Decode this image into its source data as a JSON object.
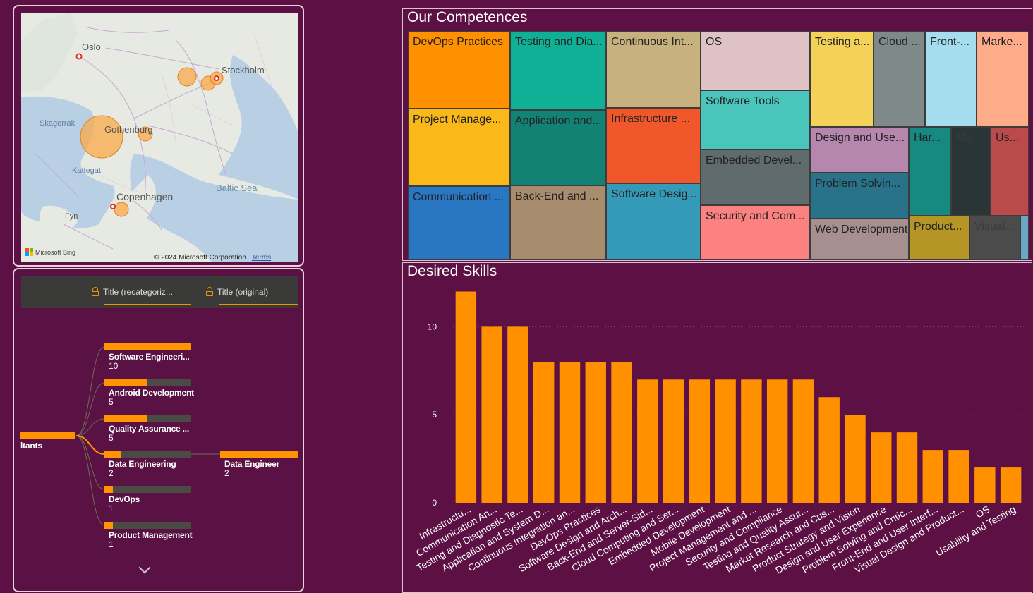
{
  "map": {
    "labels": {
      "oslo": "Oslo",
      "stockholm": "Stockholm",
      "skagerrak": "Skagerrak",
      "gothenburg": "Gothenburg",
      "kattegat": "Kattegat",
      "baltic": "Baltic Sea",
      "copenhagen": "Copenhagen",
      "fyn": "Fyn"
    },
    "bing": "Microsoft Bing",
    "copyright": "© 2024 Microsoft Corporation",
    "terms": "Terms"
  },
  "tree": {
    "field1": "Title (recategoriz...",
    "field2": "Title (original)",
    "root_label": "ltants",
    "nodes": [
      {
        "label": "Software Engineeri...",
        "value": "10",
        "fraction": 1.0
      },
      {
        "label": "Android Development",
        "value": "5",
        "fraction": 0.5
      },
      {
        "label": "Quality Assurance ...",
        "value": "5",
        "fraction": 0.5
      },
      {
        "label": "Data Engineering",
        "value": "2",
        "fraction": 0.2
      },
      {
        "label": "DevOps",
        "value": "1",
        "fraction": 0.1
      },
      {
        "label": "Product Management",
        "value": "1",
        "fraction": 0.1
      }
    ],
    "child": {
      "label": "Data Engineer",
      "value": "2",
      "fraction": 1.0
    }
  },
  "competences": {
    "title": "Our Competences",
    "tiles": [
      {
        "label": "DevOps Practices",
        "color": "#ff9000"
      },
      {
        "label": "Project Manage...",
        "color": "#fbb819"
      },
      {
        "label": "Communication ...",
        "color": "#2977c2"
      },
      {
        "label": "Testing and Dia...",
        "color": "#10b096"
      },
      {
        "label": "Application and...",
        "color": "#128274"
      },
      {
        "label": "Back-End and ...",
        "color": "#a98c6e"
      },
      {
        "label": "Continuous Int...",
        "color": "#c6b17f"
      },
      {
        "label": "Infrastructure ...",
        "color": "#f0582b"
      },
      {
        "label": "Software Desig...",
        "color": "#3599b8"
      },
      {
        "label": "OS",
        "color": "#dfc2c4"
      },
      {
        "label": "Software Tools",
        "color": "#4ac5bb"
      },
      {
        "label": "Embedded Devel...",
        "color": "#5f6b6d"
      },
      {
        "label": "Security and Com...",
        "color": "#fb8281"
      },
      {
        "label": "Testing a...",
        "color": "#f4d25a"
      },
      {
        "label": "Cloud ...",
        "color": "#7f898a"
      },
      {
        "label": "Front-...",
        "color": "#a4ddee"
      },
      {
        "label": "Marke...",
        "color": "#fdab89"
      },
      {
        "label": "Design and Use...",
        "color": "#b687ac"
      },
      {
        "label": "Problem Solvin...",
        "color": "#28738a"
      },
      {
        "label": "Web Development",
        "color": "#a78f8f"
      },
      {
        "label": "Har...",
        "color": "#168980"
      },
      {
        "label": "Mo...",
        "color": "#293537"
      },
      {
        "label": "Us...",
        "color": "#bb4a4a"
      },
      {
        "label": "Product...",
        "color": "#b59525"
      },
      {
        "label": "Visual...",
        "color": "#4b4b4b"
      },
      {
        "label": "",
        "color": "#6aa8c4"
      }
    ]
  },
  "skills": {
    "title": "Desired Skills"
  },
  "chart_data": {
    "type": "bar",
    "title": "Desired Skills",
    "categories": [
      "Infrastructu...",
      "Communication An...",
      "Testing and Diagnostic Te...",
      "Application and System D...",
      "Continuous Integration an...",
      "DevOps Practices",
      "Software Design and Arch...",
      "Back-End and Server-Sid...",
      "Cloud Computing and Ser...",
      "Embedded Development",
      "Mobile Development",
      "Project Management and ...",
      "Security and Compliance",
      "Testing and Quality Assur...",
      "Market Research and Cus...",
      "Product Strategy and Vision",
      "Design and User Experience",
      "Problem Solving and Critic...",
      "Front-End and User Interf...",
      "Visual Design and Product...",
      "OS",
      "Usability and Testing"
    ],
    "values": [
      12,
      10,
      10,
      8,
      8,
      8,
      8,
      7,
      7,
      7,
      7,
      7,
      7,
      7,
      6,
      5,
      4,
      4,
      3,
      3,
      2,
      2
    ],
    "yticks": [
      0,
      5,
      10
    ],
    "ylim": [
      0,
      12.5
    ],
    "bar_color": "#ff9000",
    "grid": "dotted horizontal"
  }
}
